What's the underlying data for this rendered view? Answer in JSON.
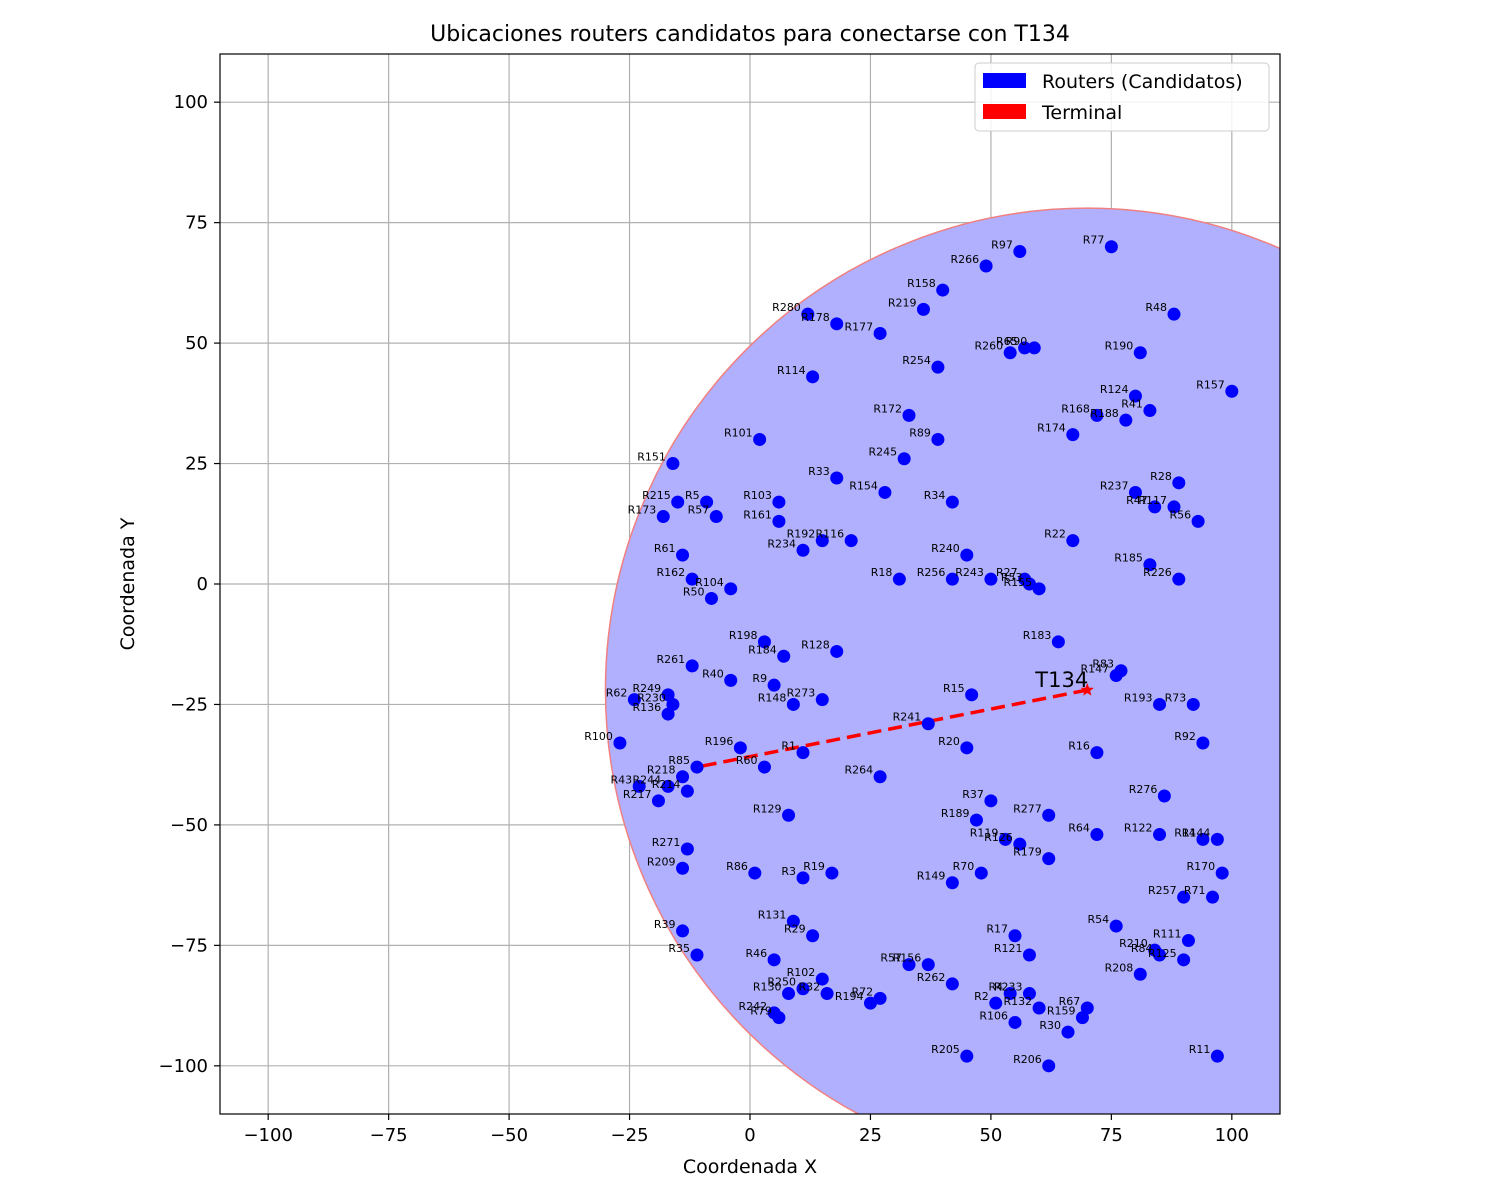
{
  "chart_data": {
    "type": "scatter",
    "title": "Ubicaciones routers candidatos para conectarse con T134",
    "xlabel": "Coordenada X",
    "ylabel": "Coordenada Y",
    "xlim": [
      -110,
      110
    ],
    "ylim": [
      -110,
      110
    ],
    "xticks": [
      -100,
      -75,
      -50,
      -25,
      0,
      25,
      50,
      75,
      100
    ],
    "yticks": [
      -100,
      -75,
      -50,
      -25,
      0,
      25,
      50,
      75,
      100
    ],
    "xtick_labels": [
      "−100",
      "−75",
      "−50",
      "−25",
      "0",
      "25",
      "50",
      "75",
      "100"
    ],
    "ytick_labels": [
      "−100",
      "−75",
      "−50",
      "−25",
      "0",
      "25",
      "50",
      "75",
      "100"
    ],
    "grid": true,
    "legend_position": "top-right",
    "legend": [
      {
        "label": "Routers (Candidatos)",
        "color": "#0000ff"
      },
      {
        "label": "Terminal",
        "color": "#ff0000"
      }
    ],
    "coverage_circle": {
      "center": [
        70,
        -22
      ],
      "radius": 100,
      "fill": "#b0b0ff",
      "edge": "#f08080"
    },
    "terminal": {
      "label": "T134",
      "x": 70,
      "y": -22,
      "color": "#ff0000"
    },
    "connection": {
      "from": [
        70,
        -22
      ],
      "to": [
        -11,
        -38
      ],
      "color": "#ff0000"
    },
    "routers": [
      {
        "label": "R97",
        "x": 56,
        "y": 69
      },
      {
        "label": "R77",
        "x": 75,
        "y": 70
      },
      {
        "label": "R266",
        "x": 49,
        "y": 66
      },
      {
        "label": "R158",
        "x": 40,
        "y": 61
      },
      {
        "label": "R219",
        "x": 36,
        "y": 57
      },
      {
        "label": "R280",
        "x": 12,
        "y": 56
      },
      {
        "label": "R178",
        "x": 18,
        "y": 54
      },
      {
        "label": "R177",
        "x": 27,
        "y": 52
      },
      {
        "label": "R48",
        "x": 88,
        "y": 56
      },
      {
        "label": "R260",
        "x": 54,
        "y": 48
      },
      {
        "label": "R65",
        "x": 57,
        "y": 49
      },
      {
        "label": "R90",
        "x": 59,
        "y": 49
      },
      {
        "label": "R190",
        "x": 81,
        "y": 48
      },
      {
        "label": "R254",
        "x": 39,
        "y": 45
      },
      {
        "label": "R114",
        "x": 13,
        "y": 43
      },
      {
        "label": "R157",
        "x": 100,
        "y": 40
      },
      {
        "label": "R124",
        "x": 80,
        "y": 39
      },
      {
        "label": "R41",
        "x": 83,
        "y": 36
      },
      {
        "label": "R168",
        "x": 72,
        "y": 35
      },
      {
        "label": "R188",
        "x": 78,
        "y": 34
      },
      {
        "label": "R172",
        "x": 33,
        "y": 35
      },
      {
        "label": "R174",
        "x": 67,
        "y": 31
      },
      {
        "label": "R89",
        "x": 39,
        "y": 30
      },
      {
        "label": "R101",
        "x": 2,
        "y": 30
      },
      {
        "label": "R245",
        "x": 32,
        "y": 26
      },
      {
        "label": "R151",
        "x": -16,
        "y": 25
      },
      {
        "label": "R33",
        "x": 18,
        "y": 22
      },
      {
        "label": "R28",
        "x": 89,
        "y": 21
      },
      {
        "label": "R154",
        "x": 28,
        "y": 19
      },
      {
        "label": "R237",
        "x": 80,
        "y": 19
      },
      {
        "label": "R215",
        "x": -15,
        "y": 17
      },
      {
        "label": "R5",
        "x": -9,
        "y": 17
      },
      {
        "label": "R103",
        "x": 6,
        "y": 17
      },
      {
        "label": "R34",
        "x": 42,
        "y": 17
      },
      {
        "label": "R47",
        "x": 84,
        "y": 16
      },
      {
        "label": "R117",
        "x": 88,
        "y": 16
      },
      {
        "label": "R173",
        "x": -18,
        "y": 14
      },
      {
        "label": "R57",
        "x": -7,
        "y": 14
      },
      {
        "label": "R161",
        "x": 6,
        "y": 13
      },
      {
        "label": "R56",
        "x": 93,
        "y": 13
      },
      {
        "label": "R192",
        "x": 15,
        "y": 9
      },
      {
        "label": "R116",
        "x": 21,
        "y": 9
      },
      {
        "label": "R22",
        "x": 67,
        "y": 9
      },
      {
        "label": "R234",
        "x": 11,
        "y": 7
      },
      {
        "label": "R61",
        "x": -14,
        "y": 6
      },
      {
        "label": "R240",
        "x": 45,
        "y": 6
      },
      {
        "label": "R185",
        "x": 83,
        "y": 4
      },
      {
        "label": "R162",
        "x": -12,
        "y": 1
      },
      {
        "label": "R18",
        "x": 31,
        "y": 1
      },
      {
        "label": "R256",
        "x": 42,
        "y": 1
      },
      {
        "label": "R243",
        "x": 50,
        "y": 1
      },
      {
        "label": "R27",
        "x": 57,
        "y": 1
      },
      {
        "label": "R226",
        "x": 89,
        "y": 1
      },
      {
        "label": "R53",
        "x": 58,
        "y": 0
      },
      {
        "label": "R104",
        "x": -4,
        "y": -1
      },
      {
        "label": "R155",
        "x": 60,
        "y": -1
      },
      {
        "label": "R50",
        "x": -8,
        "y": -3
      },
      {
        "label": "R183",
        "x": 64,
        "y": -12
      },
      {
        "label": "R198",
        "x": 3,
        "y": -12
      },
      {
        "label": "R128",
        "x": 18,
        "y": -14
      },
      {
        "label": "R184",
        "x": 7,
        "y": -15
      },
      {
        "label": "R261",
        "x": -12,
        "y": -17
      },
      {
        "label": "R83",
        "x": 77,
        "y": -18
      },
      {
        "label": "R147",
        "x": 76,
        "y": -19
      },
      {
        "label": "R40",
        "x": -4,
        "y": -20
      },
      {
        "label": "R9",
        "x": 5,
        "y": -21
      },
      {
        "label": "R15",
        "x": 46,
        "y": -23
      },
      {
        "label": "R249",
        "x": -17,
        "y": -23
      },
      {
        "label": "R62",
        "x": -24,
        "y": -24
      },
      {
        "label": "R273",
        "x": 15,
        "y": -24
      },
      {
        "label": "R148",
        "x": 9,
        "y": -25
      },
      {
        "label": "R193",
        "x": 85,
        "y": -25
      },
      {
        "label": "R73",
        "x": 92,
        "y": -25
      },
      {
        "label": "R230",
        "x": -16,
        "y": -25
      },
      {
        "label": "R136",
        "x": -17,
        "y": -27
      },
      {
        "label": "R241",
        "x": 37,
        "y": -29
      },
      {
        "label": "R100",
        "x": -27,
        "y": -33
      },
      {
        "label": "R92",
        "x": 94,
        "y": -33
      },
      {
        "label": "R196",
        "x": -2,
        "y": -34
      },
      {
        "label": "R20",
        "x": 45,
        "y": -34
      },
      {
        "label": "R1",
        "x": 11,
        "y": -35
      },
      {
        "label": "R16",
        "x": 72,
        "y": -35
      },
      {
        "label": "R85",
        "x": -11,
        "y": -38
      },
      {
        "label": "R60",
        "x": 3,
        "y": -38
      },
      {
        "label": "R218",
        "x": -14,
        "y": -40
      },
      {
        "label": "R264",
        "x": 27,
        "y": -40
      },
      {
        "label": "R43",
        "x": -23,
        "y": -42
      },
      {
        "label": "R244",
        "x": -17,
        "y": -42
      },
      {
        "label": "R214",
        "x": -13,
        "y": -43
      },
      {
        "label": "R276",
        "x": 86,
        "y": -44
      },
      {
        "label": "R217",
        "x": -19,
        "y": -45
      },
      {
        "label": "R37",
        "x": 50,
        "y": -45
      },
      {
        "label": "R129",
        "x": 8,
        "y": -48
      },
      {
        "label": "R277",
        "x": 62,
        "y": -48
      },
      {
        "label": "R189",
        "x": 47,
        "y": -49
      },
      {
        "label": "R64",
        "x": 72,
        "y": -52
      },
      {
        "label": "R122",
        "x": 85,
        "y": -52
      },
      {
        "label": "R119",
        "x": 53,
        "y": -53
      },
      {
        "label": "R14",
        "x": 94,
        "y": -53
      },
      {
        "label": "R144",
        "x": 97,
        "y": -53
      },
      {
        "label": "R126",
        "x": 56,
        "y": -54
      },
      {
        "label": "R271",
        "x": -13,
        "y": -55
      },
      {
        "label": "R179",
        "x": 62,
        "y": -57
      },
      {
        "label": "R209",
        "x": -14,
        "y": -59
      },
      {
        "label": "R86",
        "x": 1,
        "y": -60
      },
      {
        "label": "R19",
        "x": 17,
        "y": -60
      },
      {
        "label": "R70",
        "x": 48,
        "y": -60
      },
      {
        "label": "R170",
        "x": 98,
        "y": -60
      },
      {
        "label": "R3",
        "x": 11,
        "y": -61
      },
      {
        "label": "R149",
        "x": 42,
        "y": -62
      },
      {
        "label": "R257",
        "x": 90,
        "y": -65
      },
      {
        "label": "R71",
        "x": 96,
        "y": -65
      },
      {
        "label": "R131",
        "x": 9,
        "y": -70
      },
      {
        "label": "R54",
        "x": 76,
        "y": -71
      },
      {
        "label": "R39",
        "x": -14,
        "y": -72
      },
      {
        "label": "R29",
        "x": 13,
        "y": -73
      },
      {
        "label": "R17",
        "x": 55,
        "y": -73
      },
      {
        "label": "R111",
        "x": 91,
        "y": -74
      },
      {
        "label": "R210",
        "x": 84,
        "y": -76
      },
      {
        "label": "R121",
        "x": 58,
        "y": -77
      },
      {
        "label": "R35",
        "x": -11,
        "y": -77
      },
      {
        "label": "R84",
        "x": 85,
        "y": -77
      },
      {
        "label": "R125",
        "x": 90,
        "y": -78
      },
      {
        "label": "R46",
        "x": 5,
        "y": -78
      },
      {
        "label": "R57b",
        "x": 33,
        "y": -79
      },
      {
        "label": "R156",
        "x": 37,
        "y": -79
      },
      {
        "label": "R208",
        "x": 81,
        "y": -81
      },
      {
        "label": "R102",
        "x": 15,
        "y": -82
      },
      {
        "label": "R262",
        "x": 42,
        "y": -83
      },
      {
        "label": "R250",
        "x": 11,
        "y": -84
      },
      {
        "label": "R130",
        "x": 8,
        "y": -85
      },
      {
        "label": "R32",
        "x": 16,
        "y": -85
      },
      {
        "label": "R4",
        "x": 54,
        "y": -85
      },
      {
        "label": "R233",
        "x": 58,
        "y": -85
      },
      {
        "label": "R72",
        "x": 27,
        "y": -86
      },
      {
        "label": "R194",
        "x": 25,
        "y": -87
      },
      {
        "label": "R2",
        "x": 51,
        "y": -87
      },
      {
        "label": "R132",
        "x": 60,
        "y": -88
      },
      {
        "label": "R67",
        "x": 70,
        "y": -88
      },
      {
        "label": "R242",
        "x": 5,
        "y": -89
      },
      {
        "label": "R79",
        "x": 6,
        "y": -90
      },
      {
        "label": "R159",
        "x": 69,
        "y": -90
      },
      {
        "label": "R106",
        "x": 55,
        "y": -91
      },
      {
        "label": "R30",
        "x": 66,
        "y": -93
      },
      {
        "label": "R205",
        "x": 45,
        "y": -98
      },
      {
        "label": "R11",
        "x": 97,
        "y": -98
      },
      {
        "label": "R206",
        "x": 62,
        "y": -100
      }
    ]
  }
}
